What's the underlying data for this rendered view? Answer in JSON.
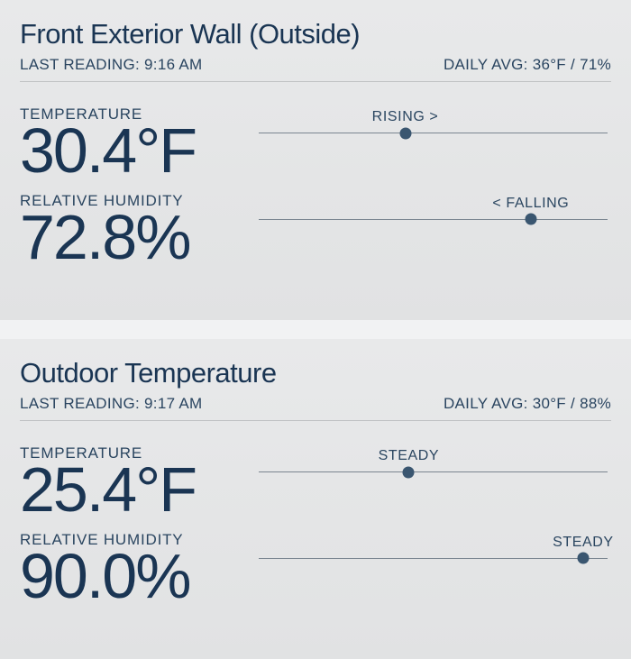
{
  "colors": {
    "text_primary": "#1a3553",
    "text_secondary": "#2a4560",
    "divider": "#c0c2c4",
    "track": "#7a8590",
    "dot": "#3a5670",
    "bg_top": "#e8e9ea",
    "bg_bottom": "#e1e2e3",
    "gap_bg": "#f1f2f3"
  },
  "panels": [
    {
      "title": "Front Exterior Wall (Outside)",
      "last_reading_label": "LAST READING: ",
      "last_reading_time": "9:16 AM",
      "daily_avg_label": "DAILY AVG: ",
      "daily_avg_value": "36°F / 71%",
      "temperature": {
        "label": "TEMPERATURE",
        "value": "30.4°F",
        "trend_label": "RISING >",
        "trend_position_pct": 42
      },
      "humidity": {
        "label": "RELATIVE HUMIDITY",
        "value": "72.8%",
        "trend_label": "< FALLING",
        "trend_position_pct": 78
      }
    },
    {
      "title": "Outdoor Temperature",
      "last_reading_label": "LAST READING: ",
      "last_reading_time": "9:17 AM",
      "daily_avg_label": "DAILY AVG: ",
      "daily_avg_value": "30°F / 88%",
      "temperature": {
        "label": "TEMPERATURE",
        "value": "25.4°F",
        "trend_label": "STEADY",
        "trend_position_pct": 43
      },
      "humidity": {
        "label": "RELATIVE HUMIDITY",
        "value": "90.0%",
        "trend_label": "STEADY",
        "trend_position_pct": 93
      }
    }
  ]
}
